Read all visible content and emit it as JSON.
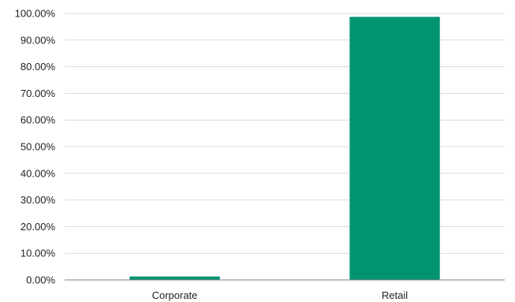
{
  "chart_data": {
    "type": "bar",
    "title": "",
    "xlabel": "",
    "ylabel": "",
    "categories": [
      "Corporate",
      "Retail"
    ],
    "values": [
      1.3,
      98.7
    ],
    "ylim": [
      0,
      100
    ],
    "ytick_labels": [
      "0.00%",
      "10.00%",
      "20.00%",
      "30.00%",
      "40.00%",
      "50.00%",
      "60.00%",
      "70.00%",
      "80.00%",
      "90.00%",
      "100.00%"
    ],
    "grid": true,
    "legend": "none",
    "colors": {
      "bar": "#009473",
      "grid": "#d9d9d9",
      "axis": "#7f7f7f"
    }
  }
}
